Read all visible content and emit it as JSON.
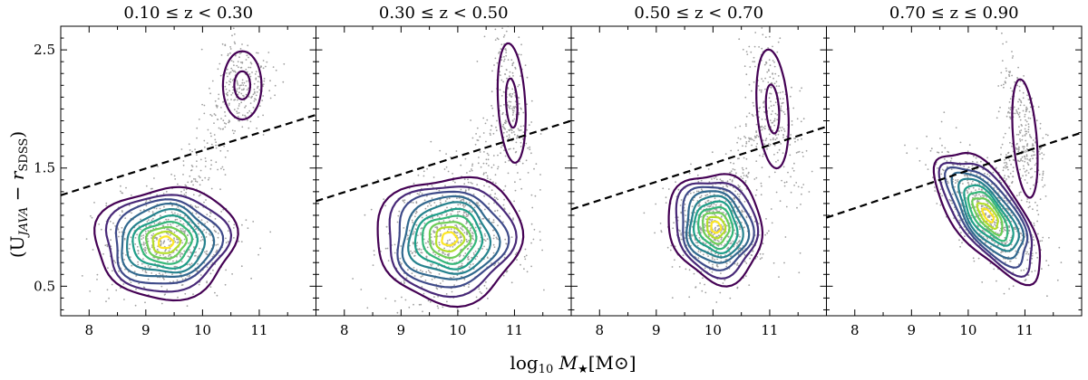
{
  "chart_data": {
    "type": "scatter",
    "description_labels": {
      "ylabel_main": "(U",
      "ylabel_sub1": "JAVA",
      "ylabel_mid": " − r",
      "ylabel_sub2": "SDSS",
      "ylabel_end": ")",
      "xlabel_main": "log",
      "xlabel_sub": "10",
      "xlabel_mid": " M",
      "xlabel_star": "★",
      "xlabel_end": "[M⊙]"
    },
    "xlim": [
      7.5,
      12.0
    ],
    "ylim": [
      0.25,
      2.7
    ],
    "xticks": [
      8,
      9,
      10,
      11
    ],
    "xtick_labels": [
      "8",
      "9",
      "10",
      "11"
    ],
    "yticks": [
      0.5,
      1.5,
      2.5
    ],
    "ytick_labels": [
      "0.5",
      "1.5",
      "2.5"
    ],
    "contour_colors": [
      "#440154",
      "#482878",
      "#3e4a89",
      "#31688e",
      "#26828e",
      "#1f9e89",
      "#35b779",
      "#6ece58",
      "#b5de2b",
      "#fde725"
    ],
    "point_color": "#a0a0a0",
    "line_style": "dashed",
    "panels": [
      {
        "title": "0.10 ≤ z < 0.30",
        "divider_line": {
          "x": [
            7.5,
            12.0
          ],
          "y": [
            1.27,
            1.95
          ]
        },
        "blue_peak": {
          "x": 9.35,
          "y": 0.87,
          "sx": 0.58,
          "sy": 0.22,
          "rot": 0.12
        },
        "red_peak": {
          "x": 10.7,
          "y": 2.2,
          "sx": 0.2,
          "sy": 0.17,
          "rot": 0.0
        },
        "contour_levels": [
          0.06,
          0.12,
          0.2,
          0.3,
          0.42,
          0.55,
          0.68,
          0.8,
          0.9,
          0.97
        ],
        "red_levels": 2
      },
      {
        "title": "0.30 ≤ z < 0.50",
        "divider_line": {
          "x": [
            7.5,
            12.0
          ],
          "y": [
            1.22,
            1.9
          ]
        },
        "blue_peak": {
          "x": 9.85,
          "y": 0.9,
          "sx": 0.6,
          "sy": 0.25,
          "rot": 0.12
        },
        "red_peak": {
          "x": 10.95,
          "y": 2.05,
          "sx": 0.14,
          "sy": 0.3,
          "rot": 0.15
        },
        "contour_levels": [
          0.06,
          0.12,
          0.2,
          0.3,
          0.42,
          0.55,
          0.68,
          0.8,
          0.9,
          0.97
        ],
        "red_levels": 2
      },
      {
        "title": "0.50 ≤ z < 0.70",
        "divider_line": {
          "x": [
            7.5,
            12.0
          ],
          "y": [
            1.15,
            1.85
          ]
        },
        "blue_peak": {
          "x": 10.05,
          "y": 1.0,
          "sx": 0.38,
          "sy": 0.22,
          "rot": 0.25
        },
        "red_peak": {
          "x": 11.05,
          "y": 2.0,
          "sx": 0.16,
          "sy": 0.3,
          "rot": 0.2
        },
        "contour_levels": [
          0.06,
          0.12,
          0.2,
          0.3,
          0.42,
          0.55,
          0.68,
          0.8,
          0.9,
          0.97
        ],
        "red_levels": 2
      },
      {
        "title": "0.70 ≤ z ≤ 0.90",
        "divider_line": {
          "x": [
            7.5,
            12.0
          ],
          "y": [
            1.08,
            1.8
          ]
        },
        "blue_peak": {
          "x": 10.35,
          "y": 1.1,
          "sx": 0.28,
          "sy": 0.3,
          "rot": 0.6
        },
        "red_peak": {
          "x": 11.0,
          "y": 1.75,
          "sx": 0.12,
          "sy": 0.3,
          "rot": 0.2
        },
        "contour_levels": [
          0.06,
          0.12,
          0.2,
          0.3,
          0.42,
          0.55,
          0.68,
          0.8,
          0.9,
          0.97
        ],
        "red_levels": 1
      }
    ]
  }
}
